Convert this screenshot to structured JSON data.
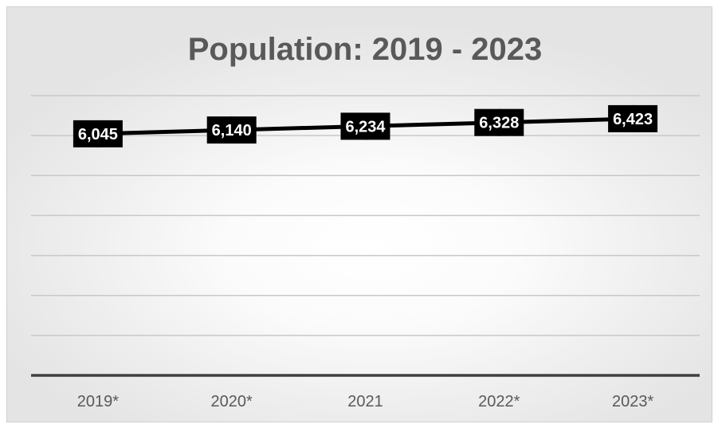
{
  "chart_data": {
    "type": "line",
    "title": "Population: 2019 - 2023",
    "xlabel": "",
    "ylabel": "",
    "categories": [
      "2019*",
      "2020*",
      "2021",
      "2022*",
      "2023*"
    ],
    "series": [
      {
        "values": [
          6045,
          6140,
          6234,
          6328,
          6423
        ],
        "labels": [
          "6,045",
          "6,140",
          "6,234",
          "6,328",
          "6,423"
        ]
      }
    ],
    "ylim": [
      0,
      7000
    ],
    "grid": true,
    "legend": "none",
    "colors": {
      "line": "#000000",
      "label_bg": "#000000",
      "label_text": "#ffffff",
      "title": "#595959",
      "tick_text": "#595959",
      "grid": "#c8c8c8",
      "axis": "#404040"
    }
  }
}
